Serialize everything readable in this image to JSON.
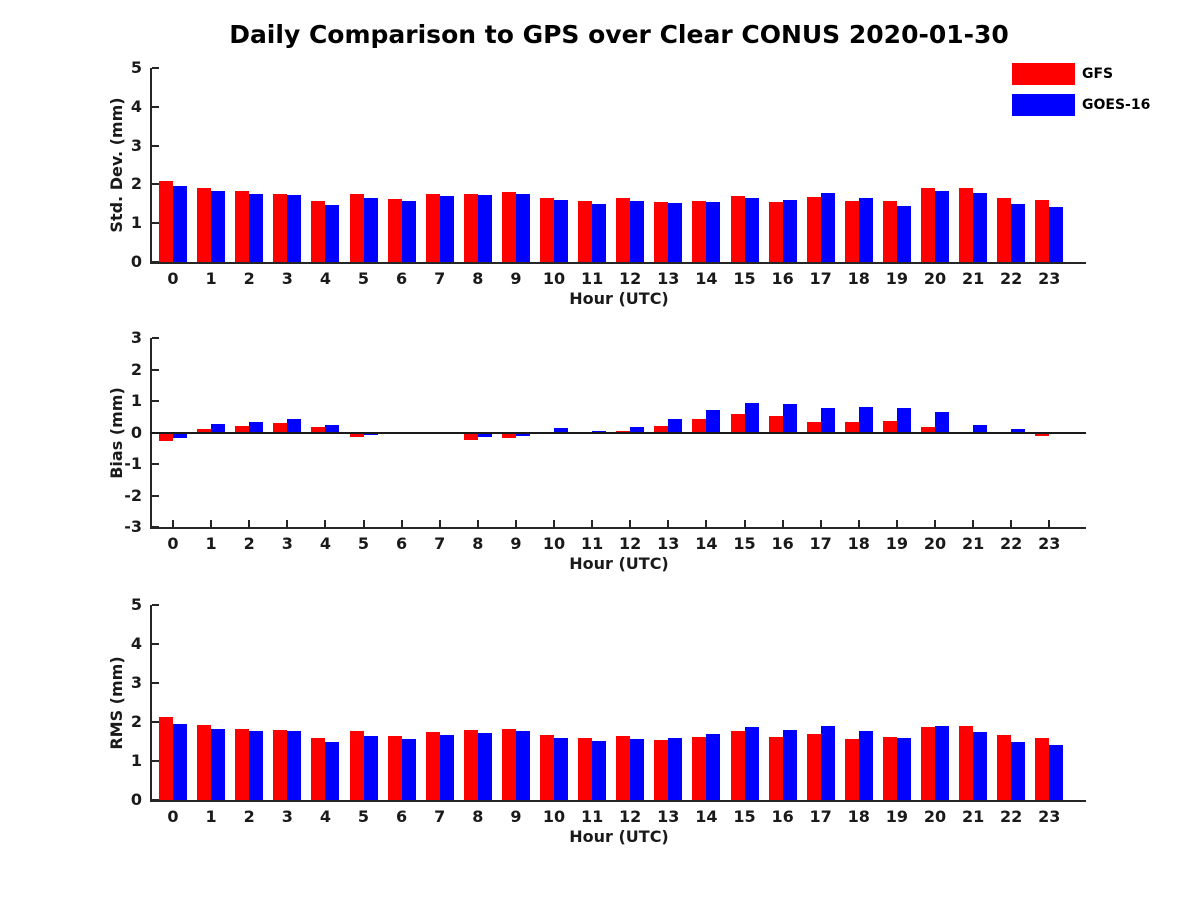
{
  "title": "Daily Comparison to GPS over Clear CONUS 2020-01-30",
  "legend": {
    "position": "top-right",
    "items": [
      {
        "label": "GFS",
        "color": "#ff0000"
      },
      {
        "label": "GOES-16",
        "color": "#0000ff"
      }
    ]
  },
  "colors": {
    "gfs": "#ff0000",
    "goes16": "#0000ff",
    "axis": "#262626"
  },
  "chart_data": [
    {
      "type": "bar",
      "panel": "std-dev",
      "ylabel": "Std. Dev. (mm)",
      "xlabel": "Hour (UTC)",
      "ylim": [
        0,
        5
      ],
      "yticks": [
        0,
        1,
        2,
        3,
        4,
        5
      ],
      "zero_line": false,
      "grid": false,
      "categories": [
        "0",
        "1",
        "2",
        "3",
        "4",
        "5",
        "6",
        "7",
        "8",
        "9",
        "10",
        "11",
        "12",
        "13",
        "14",
        "15",
        "16",
        "17",
        "18",
        "19",
        "20",
        "21",
        "22",
        "23"
      ],
      "series": [
        {
          "name": "GFS",
          "color": "#ff0000",
          "values": [
            2.1,
            1.92,
            1.82,
            1.76,
            1.58,
            1.76,
            1.62,
            1.74,
            1.76,
            1.8,
            1.65,
            1.58,
            1.65,
            1.55,
            1.58,
            1.7,
            1.55,
            1.67,
            1.56,
            1.58,
            1.9,
            1.92,
            1.65,
            1.59
          ]
        },
        {
          "name": "GOES-16",
          "color": "#0000ff",
          "values": [
            1.97,
            1.82,
            1.75,
            1.72,
            1.48,
            1.64,
            1.57,
            1.7,
            1.72,
            1.76,
            1.6,
            1.5,
            1.57,
            1.53,
            1.55,
            1.65,
            1.6,
            1.77,
            1.65,
            1.45,
            1.82,
            1.77,
            1.5,
            1.41
          ]
        }
      ]
    },
    {
      "type": "bar",
      "panel": "bias",
      "ylabel": "Bias (mm)",
      "xlabel": "Hour (UTC)",
      "ylim": [
        -3,
        3
      ],
      "yticks": [
        -3,
        -2,
        -1,
        0,
        1,
        2,
        3
      ],
      "zero_line": true,
      "grid": false,
      "categories": [
        "0",
        "1",
        "2",
        "3",
        "4",
        "5",
        "6",
        "7",
        "8",
        "9",
        "10",
        "11",
        "12",
        "13",
        "14",
        "15",
        "16",
        "17",
        "18",
        "19",
        "20",
        "21",
        "22",
        "23"
      ],
      "series": [
        {
          "name": "GFS",
          "color": "#ff0000",
          "values": [
            -0.28,
            0.12,
            0.2,
            0.3,
            0.18,
            -0.15,
            -0.05,
            -0.03,
            -0.24,
            -0.19,
            -0.02,
            -0.04,
            0.04,
            0.2,
            0.42,
            0.6,
            0.52,
            0.32,
            0.32,
            0.37,
            0.18,
            0.0,
            -0.03,
            -0.11
          ]
        },
        {
          "name": "GOES-16",
          "color": "#0000ff",
          "values": [
            -0.17,
            0.27,
            0.34,
            0.42,
            0.23,
            -0.07,
            0.03,
            0.01,
            -0.14,
            -0.1,
            0.13,
            0.06,
            0.17,
            0.44,
            0.73,
            0.93,
            0.9,
            0.78,
            0.8,
            0.77,
            0.64,
            0.25,
            0.1,
            -0.03
          ]
        }
      ]
    },
    {
      "type": "bar",
      "panel": "rms",
      "ylabel": "RMS (mm)",
      "xlabel": "Hour (UTC)",
      "ylim": [
        0,
        5
      ],
      "yticks": [
        0,
        1,
        2,
        3,
        4,
        5
      ],
      "zero_line": false,
      "grid": false,
      "categories": [
        "0",
        "1",
        "2",
        "3",
        "4",
        "5",
        "6",
        "7",
        "8",
        "9",
        "10",
        "11",
        "12",
        "13",
        "14",
        "15",
        "16",
        "17",
        "18",
        "19",
        "20",
        "21",
        "22",
        "23"
      ],
      "series": [
        {
          "name": "GFS",
          "color": "#ff0000",
          "values": [
            2.12,
            1.93,
            1.81,
            1.79,
            1.59,
            1.77,
            1.63,
            1.74,
            1.79,
            1.81,
            1.66,
            1.59,
            1.65,
            1.55,
            1.61,
            1.78,
            1.61,
            1.68,
            1.57,
            1.61,
            1.87,
            1.91,
            1.66,
            1.6
          ]
        },
        {
          "name": "GOES-16",
          "color": "#0000ff",
          "values": [
            1.96,
            1.81,
            1.76,
            1.77,
            1.49,
            1.63,
            1.57,
            1.66,
            1.72,
            1.77,
            1.6,
            1.51,
            1.57,
            1.6,
            1.68,
            1.88,
            1.8,
            1.91,
            1.78,
            1.58,
            1.91,
            1.75,
            1.5,
            1.42
          ]
        }
      ]
    }
  ]
}
